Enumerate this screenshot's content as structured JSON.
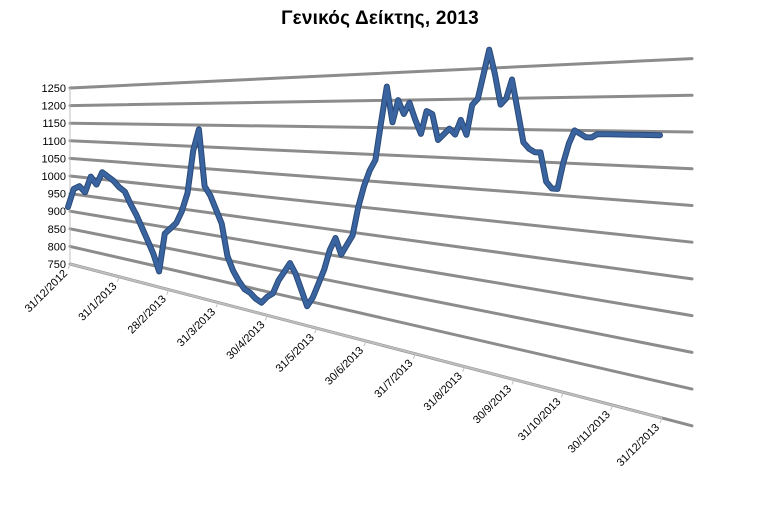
{
  "chart_data": {
    "type": "line",
    "title": "Γενικός Δείκτης, 2013",
    "xlabel": "",
    "ylabel": "",
    "ylim": [
      750,
      1250
    ],
    "y_ticks": [
      "750",
      "800",
      "850",
      "900",
      "950",
      "1000",
      "1050",
      "1100",
      "1150",
      "1200",
      "1250"
    ],
    "x_ticks": [
      "31/12/2012",
      "31/1/2013",
      "28/2/2013",
      "31/3/2013",
      "30/4/2013",
      "31/5/2013",
      "30/6/2013",
      "31/7/2013",
      "31/8/2013",
      "30/9/2013",
      "31/10/2013",
      "30/11/2013",
      "31/12/2013"
    ],
    "grid": true,
    "legend": "none",
    "style": "3d-perspective-line",
    "line_color": "#3a64a0",
    "grid_color": "#8c8c8c",
    "series": [
      {
        "x": [
          "31/12/2012",
          "3/1/2013",
          "7/1/2013",
          "10/1/2013",
          "14/1/2013",
          "17/1/2013",
          "21/1/2013",
          "24/1/2013",
          "28/1/2013",
          "31/1/2013",
          "4/2/2013",
          "7/2/2013",
          "11/2/2013",
          "14/2/2013",
          "18/2/2013",
          "21/2/2013",
          "25/2/2013",
          "28/2/2013",
          "4/3/2013",
          "7/3/2013",
          "11/3/2013",
          "14/3/2013",
          "18/3/2013",
          "21/3/2013",
          "25/3/2013",
          "28/3/2013",
          "1/4/2013",
          "4/4/2013",
          "8/4/2013",
          "11/4/2013",
          "15/4/2013",
          "18/4/2013",
          "22/4/2013",
          "25/4/2013",
          "29/4/2013",
          "2/5/2013",
          "6/5/2013",
          "9/5/2013",
          "13/5/2013",
          "16/5/2013",
          "20/5/2013",
          "23/5/2013",
          "27/5/2013",
          "30/5/2013",
          "3/6/2013",
          "6/6/2013",
          "10/6/2013",
          "13/6/2013",
          "17/6/2013",
          "20/6/2013",
          "24/6/2013",
          "27/6/2013",
          "1/7/2013",
          "4/7/2013",
          "8/7/2013",
          "11/7/2013",
          "15/7/2013",
          "18/7/2013",
          "22/7/2013",
          "25/7/2013",
          "29/7/2013",
          "1/8/2013",
          "5/8/2013",
          "8/8/2013",
          "12/8/2013",
          "15/8/2013",
          "19/8/2013",
          "22/8/2013",
          "26/8/2013",
          "29/8/2013",
          "2/9/2013",
          "5/9/2013",
          "9/9/2013",
          "12/9/2013",
          "16/9/2013",
          "19/9/2013",
          "23/9/2013",
          "26/9/2013",
          "30/9/2013",
          "3/10/2013",
          "7/10/2013",
          "10/10/2013",
          "14/10/2013",
          "17/10/2013",
          "21/10/2013",
          "24/10/2013",
          "28/10/2013",
          "31/10/2013",
          "4/11/2013",
          "7/11/2013",
          "11/11/2013",
          "14/11/2013",
          "18/11/2013",
          "21/11/2013",
          "25/11/2013",
          "28/11/2013",
          "2/12/2013",
          "5/12/2013",
          "9/12/2013",
          "12/12/2013",
          "16/12/2013",
          "19/12/2013",
          "23/12/2013",
          "27/12/2013",
          "31/12/2013"
        ],
        "values": [
          912,
          965,
          975,
          960,
          1005,
          985,
          1020,
          1010,
          1000,
          985,
          975,
          945,
          920,
          890,
          860,
          830,
          790,
          885,
          900,
          915,
          945,
          990,
          1090,
          1140,
          1010,
          990,
          960,
          930,
          860,
          830,
          810,
          795,
          790,
          780,
          775,
          790,
          800,
          830,
          850,
          870,
          850,
          820,
          790,
          810,
          840,
          870,
          910,
          935,
          905,
          925,
          945,
          1000,
          1040,
          1070,
          1090,
          1160,
          1225,
          1160,
          1200,
          1175,
          1195,
          1165,
          1140,
          1180,
          1175,
          1130,
          1140,
          1150,
          1140,
          1165,
          1140,
          1190,
          1200,
          1240,
          1280,
          1240,
          1190,
          1200,
          1230,
          1180,
          1130,
          1120,
          1115,
          1115,
          1070,
          1060,
          1060,
          1100,
          1130,
          1150,
          1145,
          1140,
          1140,
          1145,
          1145,
          1145,
          1145,
          1145,
          1145,
          1145,
          1145,
          1145,
          1145,
          1145,
          1145
        ]
      }
    ]
  }
}
